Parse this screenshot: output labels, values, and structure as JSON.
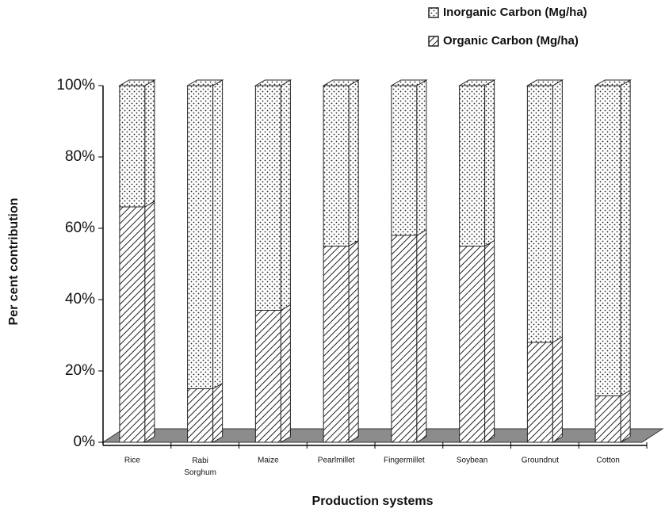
{
  "chart_data": {
    "type": "stacked_bar_100",
    "xlabel": "Production systems",
    "ylabel": "Per cent contribution",
    "categories": [
      "Rice",
      "Rabi Sorghum",
      "Maize",
      "Pearlmillet",
      "Fingermillet",
      "Soybean",
      "Groundnut",
      "Cotton"
    ],
    "series": [
      {
        "name": "Organic Carbon (Mg/ha)",
        "pattern": "hatch",
        "values": [
          66,
          15,
          37,
          55,
          58,
          55,
          28,
          13
        ]
      },
      {
        "name": "Inorganic Carbon (Mg/ha)",
        "pattern": "dots",
        "values": [
          34,
          85,
          63,
          45,
          42,
          45,
          72,
          87
        ]
      }
    ],
    "ylim": [
      0,
      100
    ],
    "yticks": [
      {
        "value": 0,
        "label": "0%"
      },
      {
        "value": 20,
        "label": "20%"
      },
      {
        "value": 40,
        "label": "40%"
      },
      {
        "value": 60,
        "label": "60%"
      },
      {
        "value": 80,
        "label": "80%"
      },
      {
        "value": 100,
        "label": "100%"
      }
    ],
    "legend": "top-right"
  }
}
